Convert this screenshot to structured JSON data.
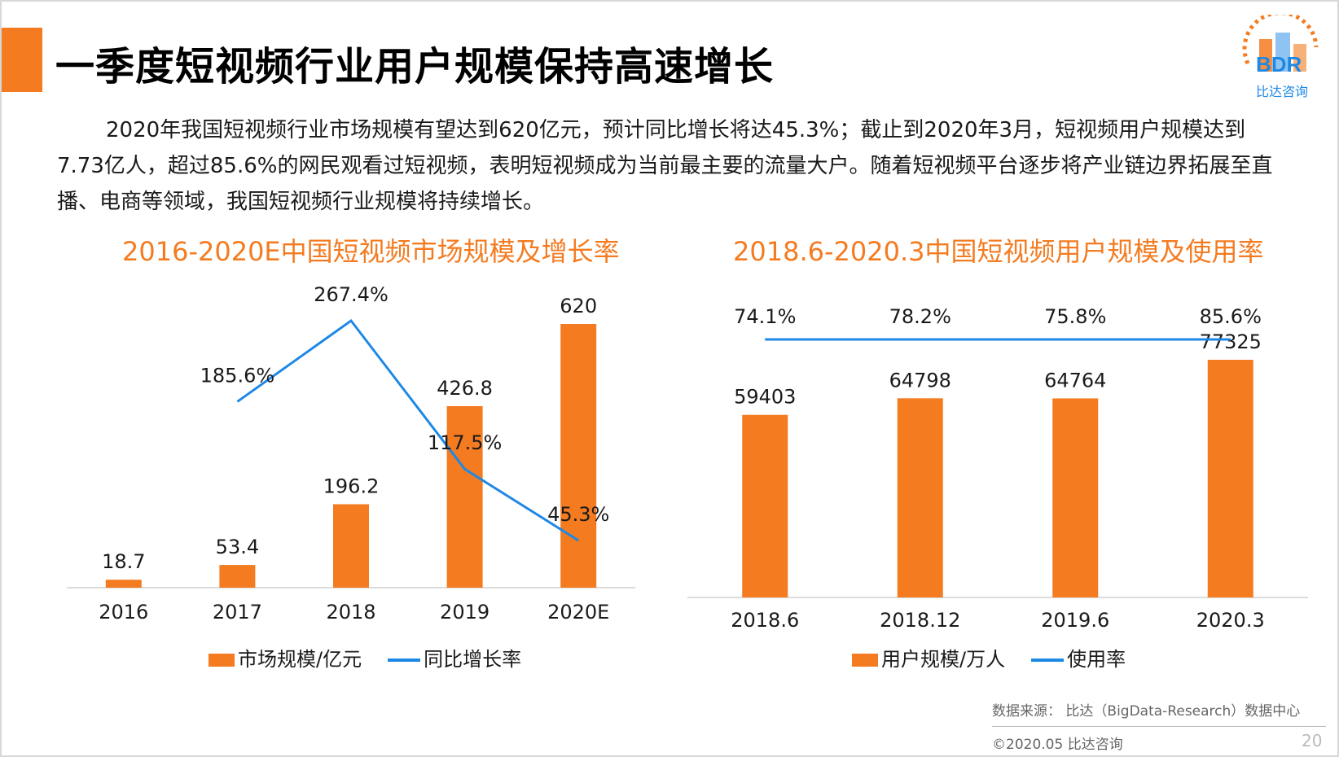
{
  "header": {
    "title": "一季度短视频行业用户规模保持高速增长",
    "logo_text": "BDR",
    "logo_subtitle": "比达咨询"
  },
  "intro": "2020年我国短视频行业市场规模有望达到620亿元，预计同比增长将达45.3%；截止到2020年3月，短视频用户规模达到7.73亿人，超过85.6%的网民观看过短视频，表明短视频成为当前最主要的流量大户。随着短视频平台逐步将产业链边界拓展至直播、电商等领域，我国短视频行业规模将持续增长。",
  "colors": {
    "bar": "#f47b20",
    "line": "#1e88e5",
    "accent": "#f47b20"
  },
  "chart_data": [
    {
      "type": "bar+line",
      "title": "2016-2020E中国短视频市场规模及增长率",
      "categories": [
        "2016",
        "2017",
        "2018",
        "2019",
        "2020E"
      ],
      "series": [
        {
          "name": "市场规模/亿元",
          "kind": "bar",
          "values": [
            18.7,
            53.4,
            196.2,
            426.8,
            620
          ],
          "labels": [
            "18.7",
            "53.4",
            "196.2",
            "426.8",
            "620"
          ]
        },
        {
          "name": "同比增长率",
          "kind": "line",
          "values": [
            null,
            185.6,
            267.4,
            117.5,
            45.3
          ],
          "labels": [
            "",
            "185.6%",
            "267.4%",
            "117.5%",
            "45.3%"
          ]
        }
      ],
      "bar_ylim": [
        0,
        650
      ],
      "line_ylim": [
        0,
        300
      ],
      "legend": "bottom"
    },
    {
      "type": "bar+line",
      "title": "2018.6-2020.3中国短视频用户规模及使用率",
      "categories": [
        "2018.6",
        "2018.12",
        "2019.6",
        "2020.3"
      ],
      "series": [
        {
          "name": "用户规模/万人",
          "kind": "bar",
          "values": [
            59403,
            64798,
            64764,
            77325
          ],
          "labels": [
            "59403",
            "64798",
            "64764",
            "77325"
          ]
        },
        {
          "name": "使用率",
          "kind": "line",
          "values": [
            74.1,
            78.2,
            75.8,
            85.6
          ],
          "labels": [
            "74.1%",
            "78.2%",
            "75.8%",
            "85.6%"
          ]
        }
      ],
      "bar_ylim": [
        0,
        82000
      ],
      "legend": "bottom"
    }
  ],
  "footer": {
    "source": "数据来源： 比达（BigData-Research）数据中心",
    "copyright": "©2020.05  比达咨询",
    "page": "20"
  }
}
